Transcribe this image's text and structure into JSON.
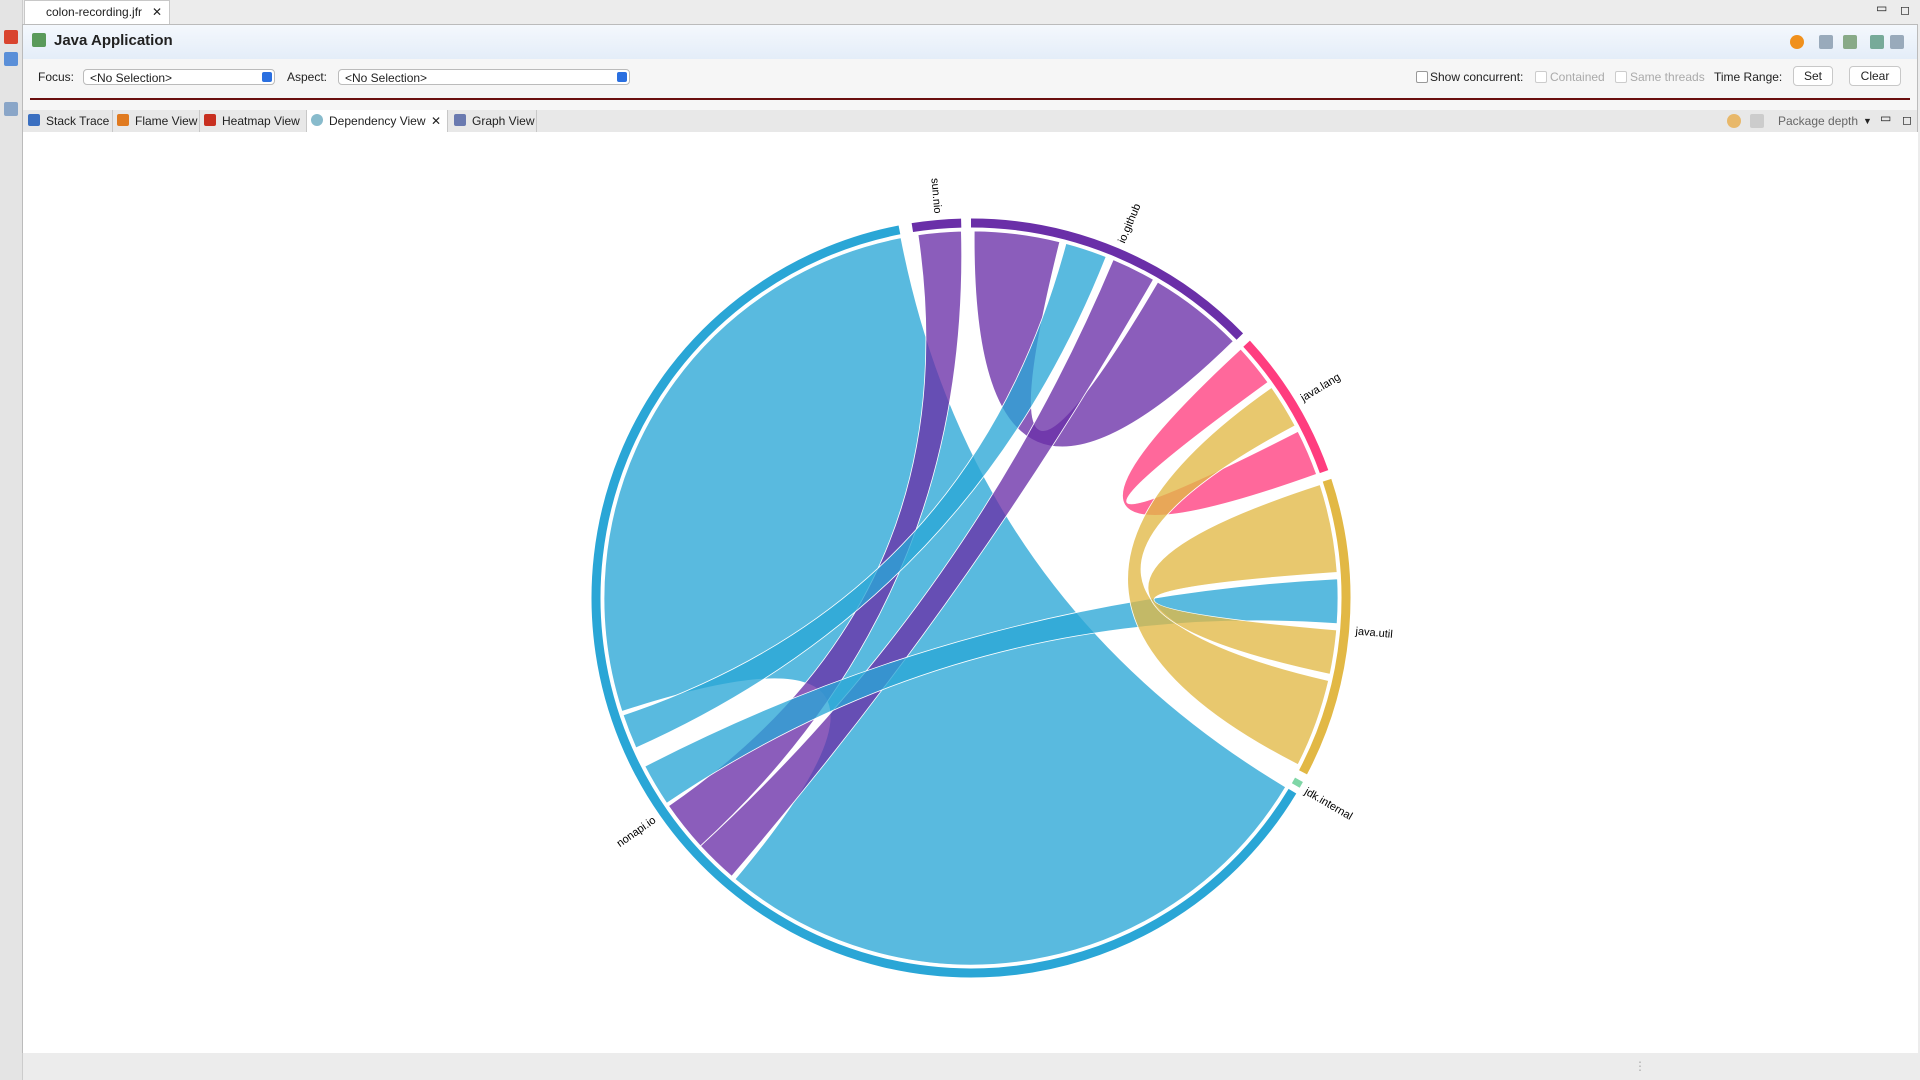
{
  "editor_tab": "colon-recording.jfr",
  "header": {
    "title": "Java Application"
  },
  "toolbar": {
    "focus_label": "Focus:",
    "focus_value": "<No Selection>",
    "aspect_label": "Aspect:",
    "aspect_value": "<No Selection>",
    "show_concurrent": "Show concurrent:",
    "contained": "Contained",
    "same_threads": "Same threads",
    "time_range": "Time Range:",
    "set": "Set",
    "clear": "Clear"
  },
  "view_tabs": [
    "Stack Trace",
    "Flame View",
    "Heatmap View",
    "Dependency View",
    "Graph View"
  ],
  "package_depth": "Package depth",
  "groups": [
    "sun.nio",
    "io.github",
    "java.lang",
    "java.util",
    "jdk.internal",
    "nonapi.io"
  ]
}
